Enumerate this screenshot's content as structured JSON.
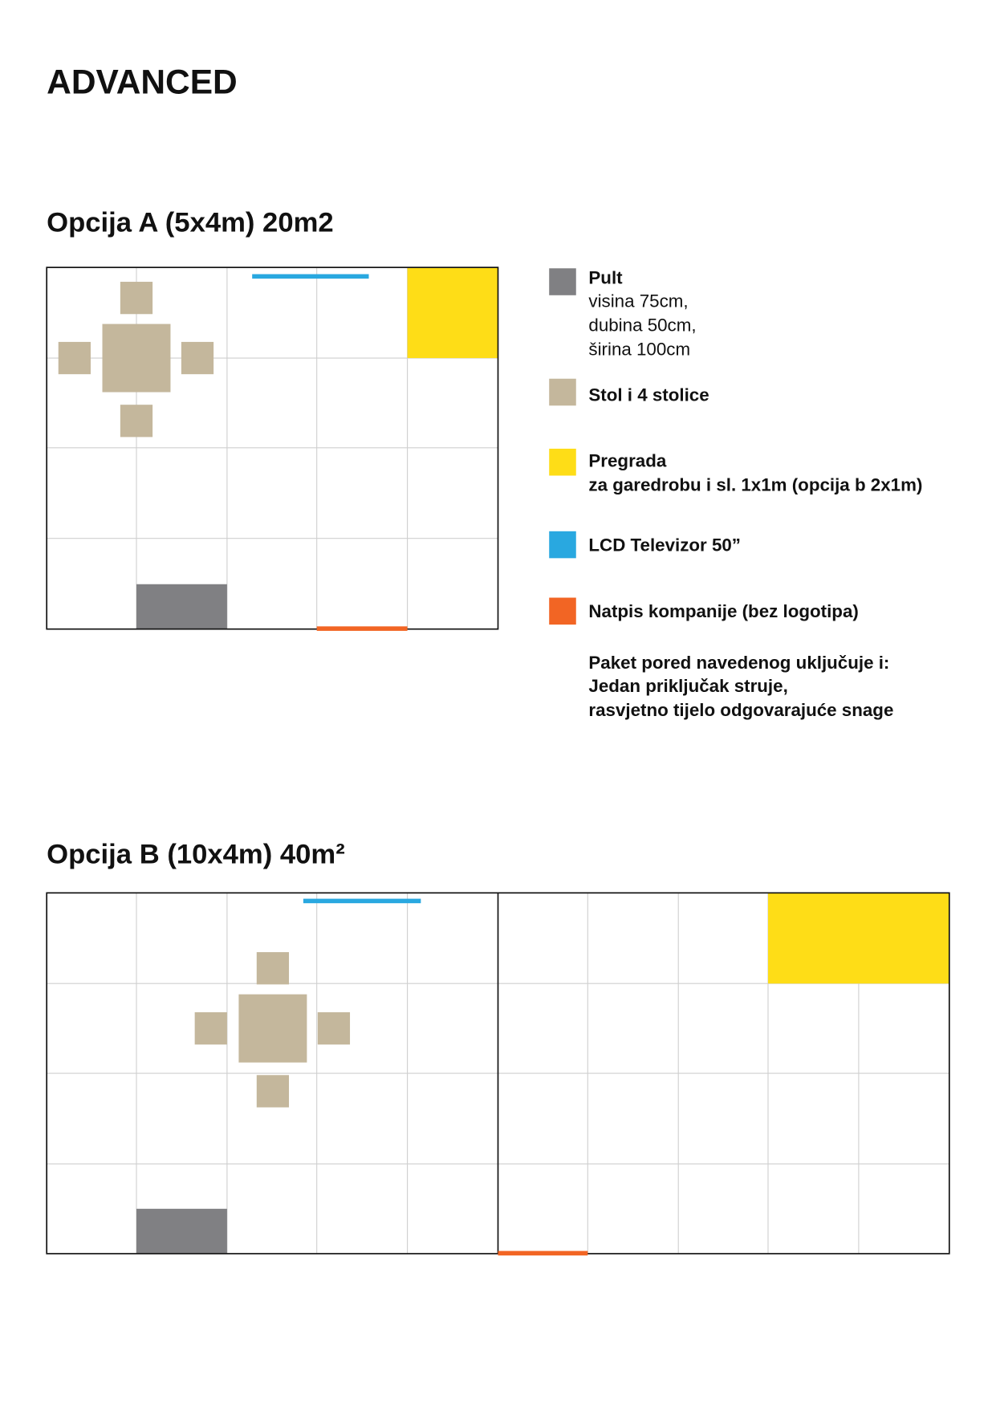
{
  "title": "ADVANCED",
  "options": [
    {
      "heading": "Opcija A (5x4m) 20m2"
    },
    {
      "heading": "Opcija B (10x4m) 40m²"
    }
  ],
  "legend": [
    {
      "label": "Pult",
      "details": [
        "visina 75cm,",
        "dubina 50cm,",
        "širina 100cm"
      ]
    },
    {
      "label": "Stol i 4 stolice"
    },
    {
      "label": "Pregrada",
      "details": [
        "za garedrobu i sl. 1x1m (opcija b 2x1m)"
      ]
    },
    {
      "label": "LCD Televizor 50”"
    },
    {
      "label": "Natpis kompanije (bez logotipa)"
    }
  ],
  "note": [
    "Paket pored navedenog uključuje i:",
    "Jedan priključak struje,",
    "rasvjetno tijelo odgovarajuće snage"
  ]
}
